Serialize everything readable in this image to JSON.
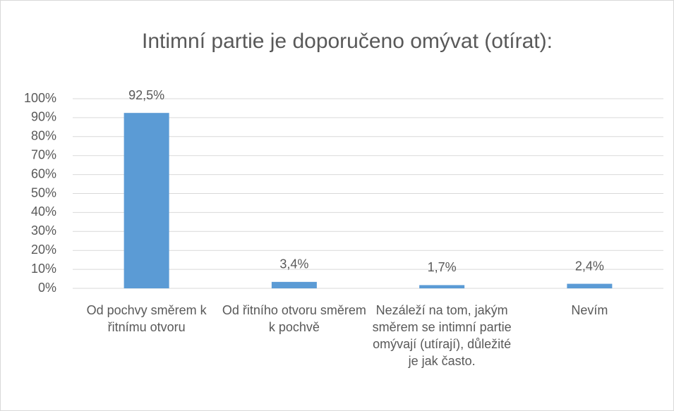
{
  "chart_data": {
    "type": "bar",
    "title": "Intimní partie je doporučeno omývat (otírat):",
    "categories": [
      "Od pochvy směrem k řitnímu otvoru",
      "Od řitního otvoru směrem k pochvě",
      "Nezáleží na tom, jakým směrem se intimní partie omývají (utírají), důležité je jak často.",
      "Nevím"
    ],
    "values": [
      92.5,
      3.4,
      1.7,
      2.4
    ],
    "value_labels": [
      "92,5%",
      "3,4%",
      "1,7%",
      "2,4%"
    ],
    "color": "#5b9bd5",
    "ylim": [
      0,
      100
    ],
    "yticks": [
      {
        "value": 0,
        "label": "0%"
      },
      {
        "value": 10,
        "label": "10%"
      },
      {
        "value": 20,
        "label": "20%"
      },
      {
        "value": 30,
        "label": "30%"
      },
      {
        "value": 40,
        "label": "40%"
      },
      {
        "value": 50,
        "label": "50%"
      },
      {
        "value": 60,
        "label": "60%"
      },
      {
        "value": 70,
        "label": "70%"
      },
      {
        "value": 80,
        "label": "80%"
      },
      {
        "value": 90,
        "label": "90%"
      },
      {
        "value": 100,
        "label": "100%"
      }
    ],
    "grid": true
  }
}
